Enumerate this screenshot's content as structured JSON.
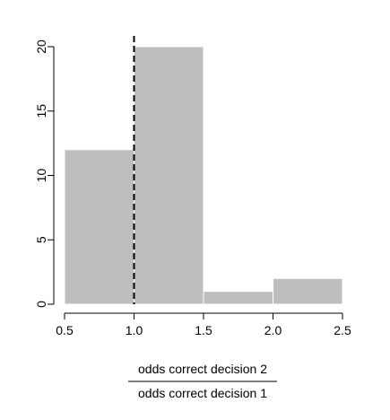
{
  "chart_data": {
    "type": "bar",
    "subtype": "histogram",
    "bins": [
      {
        "x0": 0.5,
        "x1": 1.0,
        "count": 12
      },
      {
        "x0": 1.0,
        "x1": 1.5,
        "count": 20
      },
      {
        "x0": 1.5,
        "x1": 2.0,
        "count": 1
      },
      {
        "x0": 2.0,
        "x1": 2.5,
        "count": 2
      }
    ],
    "xlim": [
      0.5,
      2.5
    ],
    "ylim": [
      0,
      20
    ],
    "x_ticks": [
      "0.5",
      "1.0",
      "1.5",
      "2.0",
      "2.5"
    ],
    "y_ticks": [
      "0",
      "5",
      "10",
      "15",
      "20"
    ],
    "xlabel_numerator": "odds correct decision 2",
    "xlabel_denominator": "odds correct decision 1",
    "reference_line": {
      "x": 1.0,
      "style": "dashed"
    },
    "bar_color": "#bebebe",
    "bar_edge_color": "#ffffff",
    "grid": false,
    "legend": "none"
  }
}
